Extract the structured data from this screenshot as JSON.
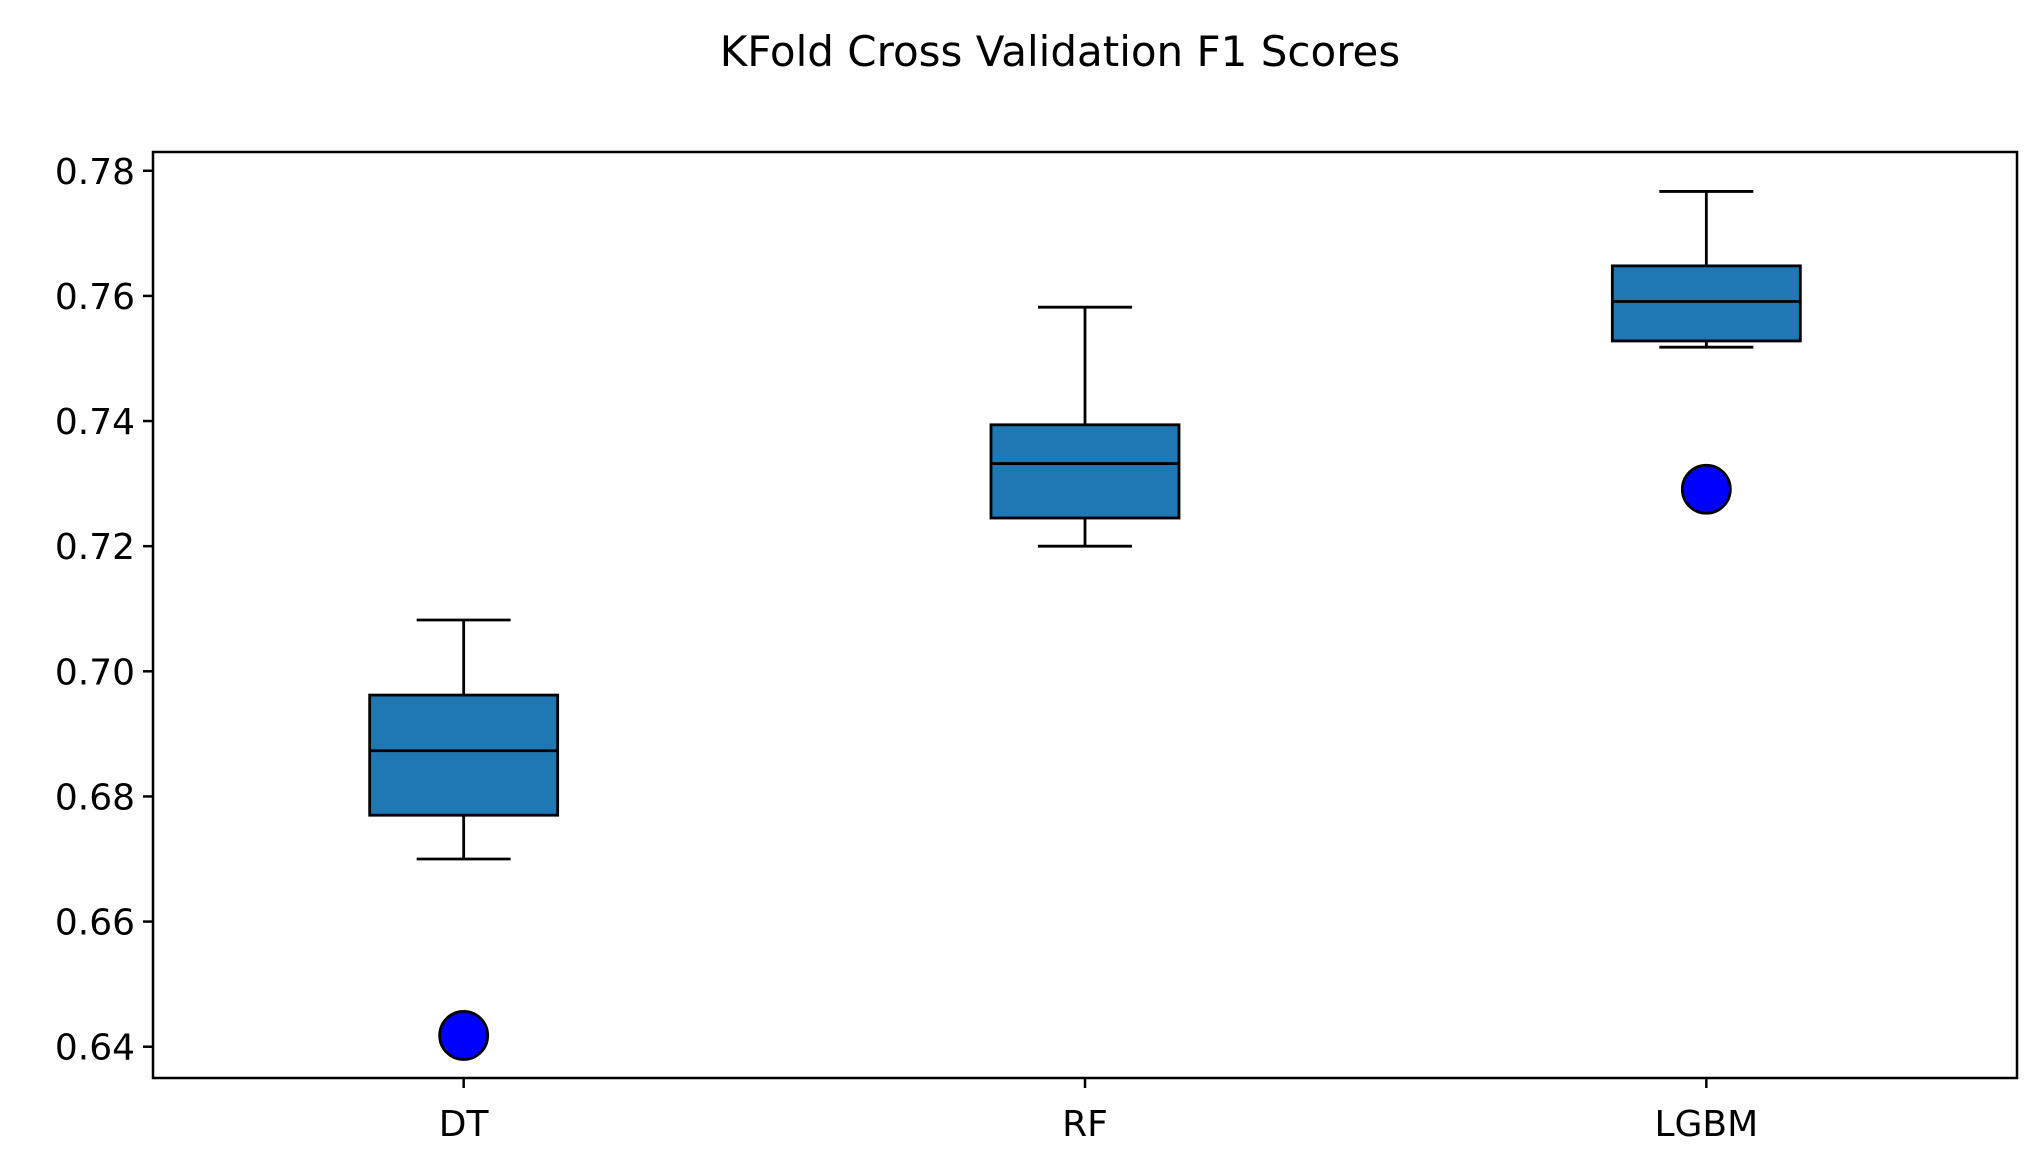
{
  "chart_data": {
    "type": "box",
    "title": "KFold Cross Validation F1 Scores",
    "xlabel": "",
    "ylabel": "",
    "ylim": [
      0.635,
      0.783
    ],
    "yticks": [
      0.64,
      0.66,
      0.68,
      0.7,
      0.72,
      0.74,
      0.76,
      0.78
    ],
    "ytick_labels": [
      "0.64",
      "0.66",
      "0.68",
      "0.70",
      "0.72",
      "0.74",
      "0.76",
      "0.78"
    ],
    "categories": [
      "DT",
      "RF",
      "LGBM"
    ],
    "boxes": [
      {
        "category": "DT",
        "whisker_low": 0.67,
        "q1": 0.677,
        "median": 0.6873,
        "q3": 0.6962,
        "whisker_high": 0.7082,
        "outliers": [
          0.6418
        ]
      },
      {
        "category": "RF",
        "whisker_low": 0.72,
        "q1": 0.7245,
        "median": 0.7332,
        "q3": 0.7394,
        "whisker_high": 0.7582,
        "outliers": []
      },
      {
        "category": "LGBM",
        "whisker_low": 0.7518,
        "q1": 0.7528,
        "median": 0.7591,
        "q3": 0.7648,
        "whisker_high": 0.7767,
        "outliers": [
          0.7291
        ]
      }
    ],
    "grid": false,
    "legend": "none",
    "colors": {
      "box_fill": "#1f77b4",
      "box_edge": "#000000",
      "outlier_fill": "#0000ff",
      "axis": "#000000"
    }
  }
}
